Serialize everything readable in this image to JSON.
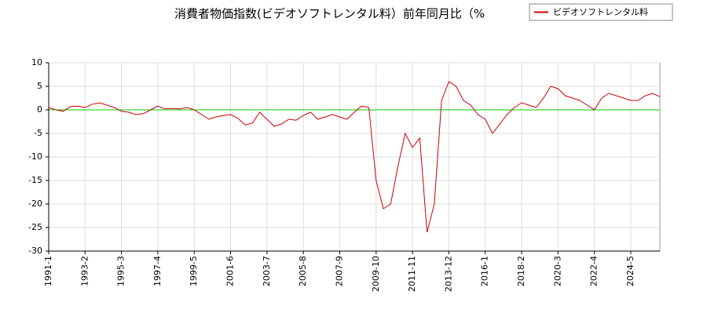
{
  "chart_data": {
    "type": "line",
    "title": "消費者物価指数(ビデオソフトレンタル料）前年同月比（%",
    "categories": [
      "1991-1",
      null,
      null,
      null,
      null,
      "1993-2",
      null,
      null,
      null,
      null,
      "1995-3",
      null,
      null,
      null,
      null,
      "1997-4",
      null,
      null,
      null,
      null,
      "1999-5",
      null,
      null,
      null,
      null,
      "2001-6",
      null,
      null,
      null,
      null,
      "2003-7",
      null,
      null,
      null,
      null,
      "2005-8",
      null,
      null,
      null,
      null,
      "2007-9",
      null,
      null,
      null,
      null,
      "2009-10",
      null,
      null,
      null,
      null,
      "2011-11",
      null,
      null,
      null,
      null,
      "2013-12",
      null,
      null,
      null,
      null,
      "2016-1",
      null,
      null,
      null,
      null,
      "2018-2",
      null,
      null,
      null,
      null,
      "2020-3",
      null,
      null,
      null,
      null,
      "2022-4",
      null,
      null,
      null,
      null,
      "2024-5",
      null,
      null,
      null,
      null
    ],
    "series": [
      {
        "name": "ビデオソフトレンタル料",
        "color": "#cc0000",
        "values": [
          0.5,
          0,
          -0.3,
          0.7,
          0.8,
          0.5,
          1.2,
          1.5,
          1.0,
          0.5,
          -0.3,
          -0.5,
          -1.0,
          -0.8,
          0,
          0.8,
          0.2,
          0.3,
          0.2,
          0.5,
          0,
          -1.0,
          -2.0,
          -1.5,
          -1.2,
          -1.0,
          -1.8,
          -3.2,
          -2.8,
          -0.5,
          -2.0,
          -3.5,
          -3.0,
          -2.0,
          -2.2,
          -1.2,
          -0.5,
          -2.0,
          -1.5,
          -1.0,
          -1.5,
          -2.0,
          -0.5,
          0.8,
          0.5,
          -15,
          -21,
          -20,
          -12,
          -5,
          -8,
          -6,
          -26,
          -20,
          2,
          6,
          5,
          2,
          1,
          -1,
          -2,
          -5,
          -3,
          -1,
          0.5,
          1.5,
          1.0,
          0.5,
          2.5,
          5.0,
          4.5,
          3.0,
          2.5,
          2.0,
          1.0,
          0,
          2.5,
          3.5,
          3.0,
          2.5,
          2.0,
          2.0,
          3.0,
          3.5,
          2.8
        ]
      }
    ],
    "ylim": [
      -30,
      10
    ],
    "yticks": [
      -30,
      -25,
      -20,
      -15,
      -10,
      -5,
      0,
      5,
      10
    ],
    "grid": true,
    "zero_line_color": "#00cc00",
    "legend": "top-right"
  }
}
